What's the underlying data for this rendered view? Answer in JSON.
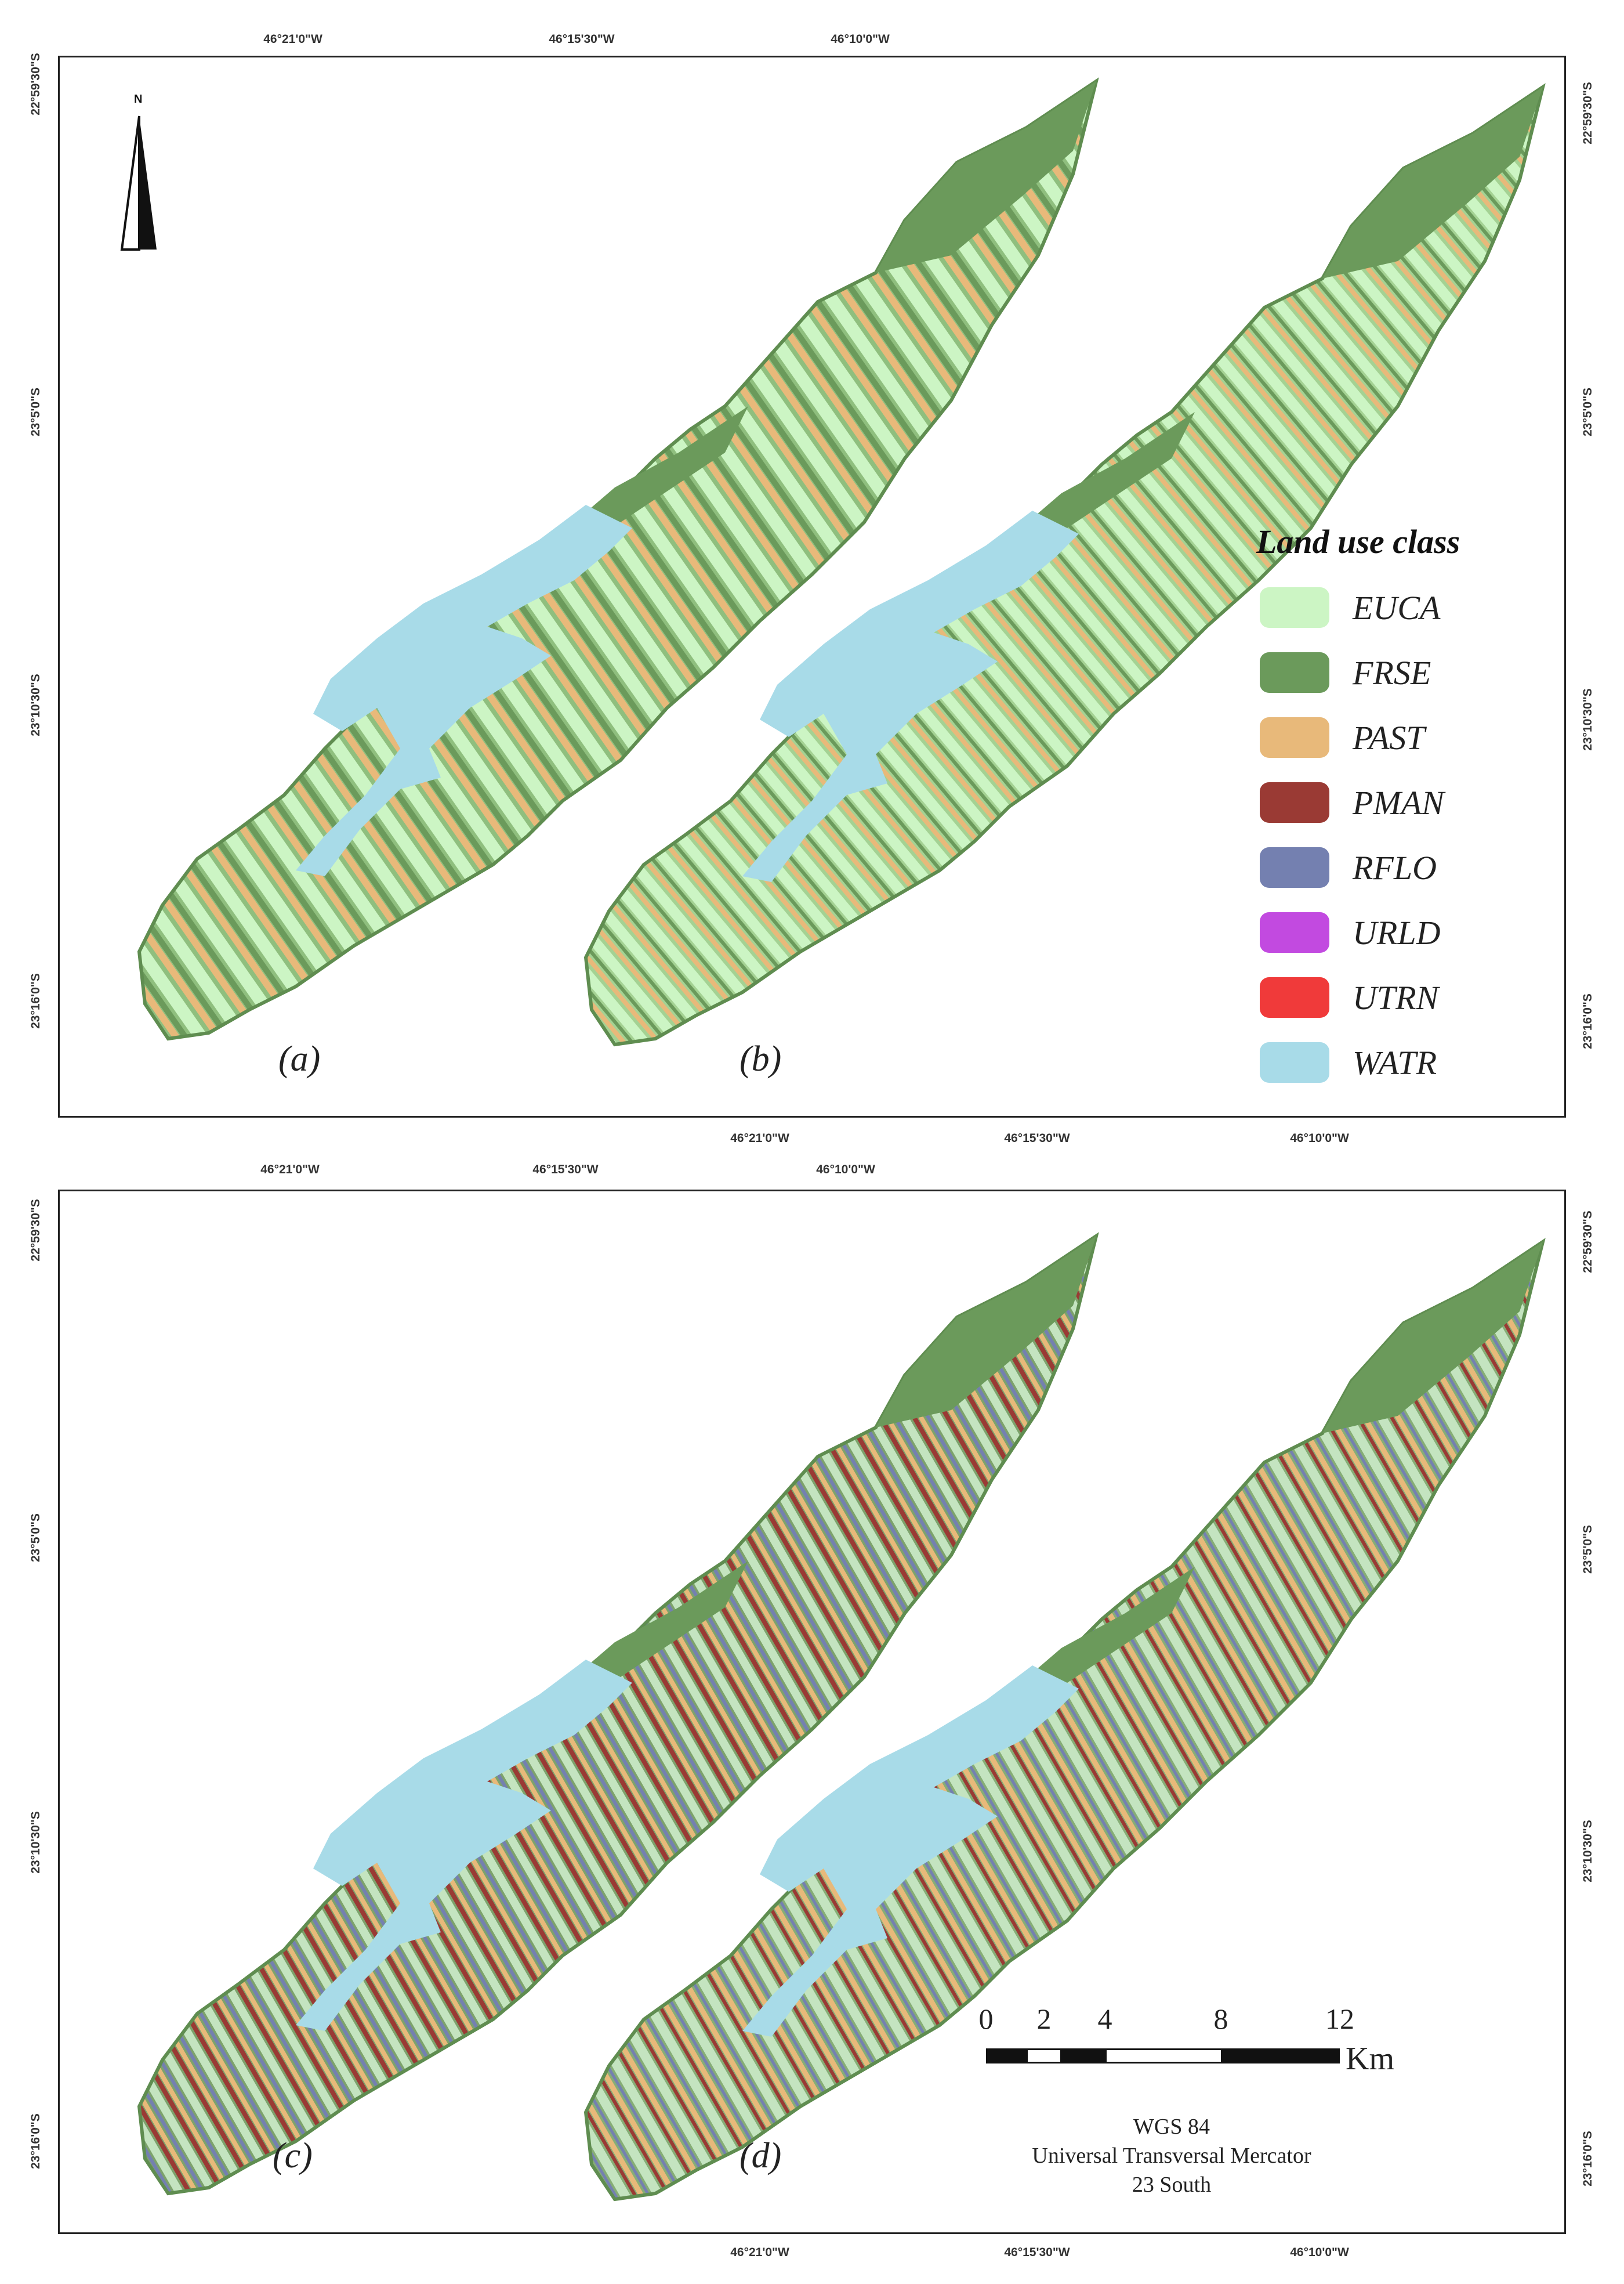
{
  "top_coords": [
    "46°21'0\"W",
    "46°15'30\"W",
    "46°10'0\"W"
  ],
  "bottom_coords": [
    "46°21'0\"W",
    "46°15'30\"W",
    "46°10'0\"W"
  ],
  "side_coords": [
    "22°59'30\"S",
    "23°5'0\"S",
    "23°10'30\"S",
    "23°16'0\"S"
  ],
  "north_label": "N",
  "panels": [
    "(a)",
    "(b)",
    "(c)",
    "(d)"
  ],
  "legend": {
    "title": "Land use class",
    "items": [
      {
        "code": "EUCA",
        "color": "#ccf5c4"
      },
      {
        "code": "FRSE",
        "color": "#6b9a5b"
      },
      {
        "code": "PAST",
        "color": "#e8b97a"
      },
      {
        "code": "PMAN",
        "color": "#9a3a34"
      },
      {
        "code": "RFLO",
        "color": "#7480b0"
      },
      {
        "code": "URLD",
        "color": "#c24ae0"
      },
      {
        "code": "UTRN",
        "color": "#f03a3a"
      },
      {
        "code": "WATR",
        "color": "#a8dbe8"
      }
    ]
  },
  "scale": {
    "ticks": [
      "0",
      "2",
      "4",
      "8",
      "12"
    ],
    "unit": "Km"
  },
  "projection": {
    "line1": "WGS 84",
    "line2": "Universal Transversal Mercator",
    "line3": "23 South"
  }
}
